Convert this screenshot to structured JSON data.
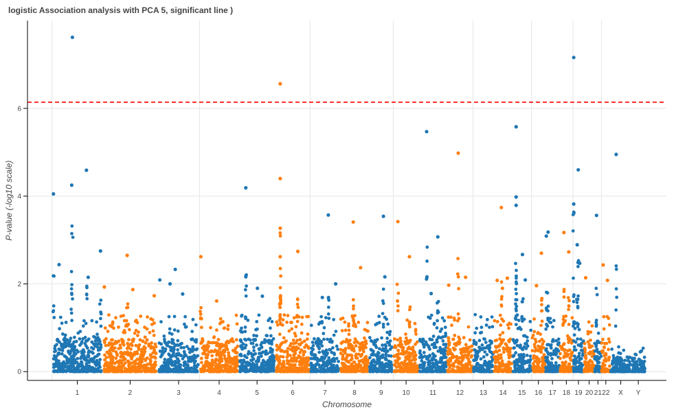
{
  "chart_data": {
    "type": "scatter",
    "title": "logistic Association analysis with PCA 5, significant line )",
    "xlabel": "Chromosome",
    "ylabel": "P-value (-log10 scale)",
    "ylim": [
      -0.2,
      8.0
    ],
    "yticks": [
      0,
      2,
      4,
      6
    ],
    "grid": true,
    "legend": "none",
    "significance_line": {
      "y": 6.14,
      "color": "#ff0000",
      "style": "dashed"
    },
    "colors": [
      "#1f77b4",
      "#ff7f0e"
    ],
    "x_axis": "cumulative genomic position (chromosomes laid out consecutively)",
    "chromosomes": [
      {
        "label": "1",
        "start": 0.0,
        "end": 0.144,
        "color": "#1f77b4",
        "peaks": [
          [
            0.004,
            4.05
          ],
          [
            0.02,
            2.44
          ],
          [
            0.058,
            7.62
          ],
          [
            0.056,
            4.25
          ],
          [
            0.098,
            4.59
          ],
          [
            0.103,
            2.15
          ],
          [
            0.138,
            2.75
          ]
        ]
      },
      {
        "label": "2",
        "start": 0.144,
        "end": 0.301,
        "color": "#ff7f0e",
        "peaks": [
          [
            0.149,
            1.93
          ],
          [
            0.214,
            2.65
          ],
          [
            0.23,
            1.87
          ],
          [
            0.291,
            1.73
          ]
        ]
      },
      {
        "label": "3",
        "start": 0.301,
        "end": 0.42,
        "color": "#1f77b4",
        "peaks": [
          [
            0.307,
            2.09
          ],
          [
            0.336,
            2.0
          ],
          [
            0.351,
            2.33
          ],
          [
            0.372,
            1.77
          ]
        ]
      },
      {
        "label": "4",
        "start": 0.42,
        "end": 0.532,
        "color": "#ff7f0e",
        "peaks": [
          [
            0.424,
            2.62
          ],
          [
            0.469,
            1.61
          ]
        ]
      },
      {
        "label": "5",
        "start": 0.532,
        "end": 0.636,
        "color": "#1f77b4",
        "peaks": [
          [
            0.552,
            4.19
          ],
          [
            0.552,
            2.16
          ],
          [
            0.585,
            1.9
          ],
          [
            0.599,
            1.72
          ]
        ]
      },
      {
        "label": "6",
        "start": 0.636,
        "end": 0.735,
        "color": "#ff7f0e",
        "peaks": [
          [
            0.65,
            6.56
          ],
          [
            0.65,
            4.4
          ],
          [
            0.65,
            3.27
          ],
          [
            0.65,
            2.62
          ],
          [
            0.7,
            2.74
          ]
        ]
      },
      {
        "label": "7",
        "start": 0.735,
        "end": 0.82,
        "color": "#1f77b4",
        "peaks": [
          [
            0.787,
            3.57
          ],
          [
            0.808,
            2.0
          ],
          [
            0.77,
            1.69
          ]
        ]
      },
      {
        "label": "8",
        "start": 0.82,
        "end": 0.903,
        "color": "#ff7f0e",
        "peaks": [
          [
            0.858,
            3.41
          ],
          [
            0.879,
            2.37
          ]
        ]
      },
      {
        "label": "9",
        "start": 0.903,
        "end": 0.972,
        "color": "#1f77b4",
        "peaks": [
          [
            0.944,
            3.54
          ],
          [
            0.948,
            2.16
          ]
        ]
      },
      {
        "label": "10",
        "start": 0.972,
        "end": 1.045,
        "color": "#ff7f0e",
        "peaks": [
          [
            0.985,
            3.42
          ],
          [
            1.018,
            2.62
          ]
        ]
      },
      {
        "label": "11",
        "start": 1.045,
        "end": 1.125,
        "color": "#1f77b4",
        "peaks": [
          [
            1.067,
            5.47
          ],
          [
            1.099,
            3.07
          ],
          [
            1.08,
            1.78
          ]
        ]
      },
      {
        "label": "12",
        "start": 1.125,
        "end": 1.199,
        "color": "#ff7f0e",
        "peaks": [
          [
            1.157,
            4.98
          ],
          [
            1.178,
            2.15
          ],
          [
            1.13,
            1.97
          ]
        ]
      },
      {
        "label": "13",
        "start": 1.199,
        "end": 1.258,
        "color": "#1f77b4",
        "peaks": []
      },
      {
        "label": "14",
        "start": 1.258,
        "end": 1.311,
        "color": "#ff7f0e",
        "peaks": [
          [
            1.28,
            3.74
          ],
          [
            1.297,
            2.13
          ],
          [
            1.268,
            2.08
          ],
          [
            1.283,
            1.9
          ]
        ]
      },
      {
        "label": "15",
        "start": 1.311,
        "end": 1.366,
        "color": "#1f77b4",
        "peaks": [
          [
            1.322,
            5.58
          ],
          [
            1.322,
            3.98
          ],
          [
            1.322,
            3.79
          ],
          [
            1.34,
            2.67
          ],
          [
            1.348,
            2.09
          ]
        ]
      },
      {
        "label": "16",
        "start": 1.366,
        "end": 1.405,
        "color": "#ff7f0e",
        "peaks": [
          [
            1.394,
            2.7
          ],
          [
            1.38,
            1.96
          ]
        ]
      },
      {
        "label": "17",
        "start": 1.405,
        "end": 1.446,
        "color": "#1f77b4",
        "peaks": [
          [
            1.413,
            3.18
          ],
          [
            1.408,
            3.09
          ]
        ]
      },
      {
        "label": "18",
        "start": 1.446,
        "end": 1.484,
        "color": "#ff7f0e",
        "peaks": [
          [
            1.458,
            3.17
          ],
          [
            1.472,
            2.73
          ]
        ]
      },
      {
        "label": "19",
        "start": 1.484,
        "end": 1.515,
        "color": "#1f77b4",
        "peaks": [
          [
            1.486,
            7.16
          ],
          [
            1.499,
            4.6
          ],
          [
            1.486,
            3.82
          ],
          [
            1.496,
            2.89
          ],
          [
            1.503,
            2.47
          ]
        ]
      },
      {
        "label": "20",
        "start": 1.515,
        "end": 1.545,
        "color": "#ff7f0e",
        "peaks": [
          [
            1.52,
            2.14
          ]
        ]
      },
      {
        "label": "21",
        "start": 1.545,
        "end": 1.565,
        "color": "#1f77b4",
        "peaks": [
          [
            1.551,
            3.56
          ]
        ]
      },
      {
        "label": "22",
        "start": 1.565,
        "end": 1.59,
        "color": "#ff7f0e",
        "peaks": [
          [
            1.57,
            2.43
          ],
          [
            1.582,
            2.08
          ]
        ]
      },
      {
        "label": "X",
        "start": 1.59,
        "end": 1.65,
        "color": "#1f77b4",
        "peaks": [
          [
            1.607,
            4.95
          ]
        ]
      },
      {
        "label": "Y",
        "start": 1.65,
        "end": 1.69,
        "color": "#1f77b4",
        "peaks": []
      }
    ],
    "xlim": [
      -0.07,
      1.75
    ]
  }
}
